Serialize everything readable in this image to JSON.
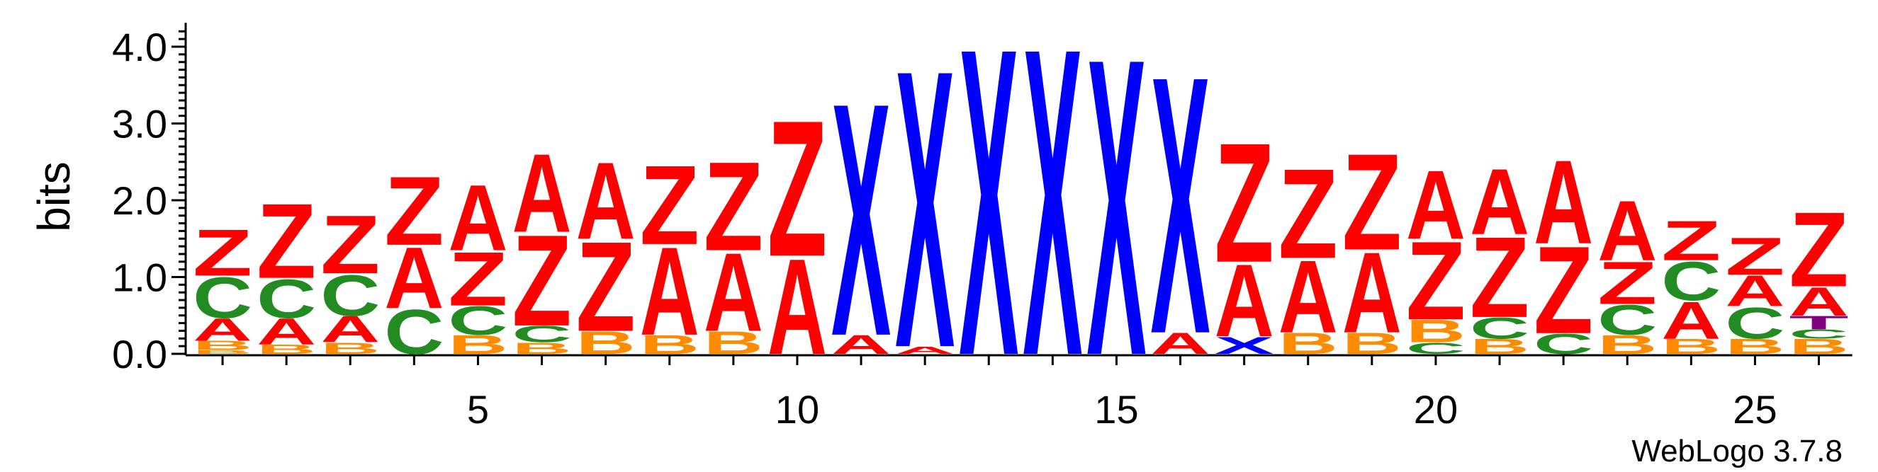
{
  "chart_data": {
    "type": "sequence-logo",
    "ylabel": "bits",
    "ylim": [
      0,
      4.2
    ],
    "y_ticks": [
      "0.0",
      "1.0",
      "2.0",
      "3.0",
      "4.0"
    ],
    "x_ticks": [
      "5",
      "10",
      "15",
      "20",
      "25"
    ],
    "credit": "WebLogo 3.7.8",
    "colors": {
      "A": "#ff0000",
      "Z": "#ff0000",
      "C": "#228b22",
      "B": "#ff8c00",
      "X": "#0000ff",
      "T": "#800080"
    },
    "positions": [
      {
        "pos": 1,
        "stack": [
          [
            "B",
            0.05
          ],
          [
            "B",
            0.12
          ],
          [
            "A",
            0.3
          ],
          [
            "C",
            0.55
          ],
          [
            "Z",
            0.62
          ]
        ]
      },
      {
        "pos": 2,
        "stack": [
          [
            "B",
            0.12
          ],
          [
            "A",
            0.35
          ],
          [
            "C",
            0.52
          ],
          [
            "Z",
            1.0
          ]
        ]
      },
      {
        "pos": 3,
        "stack": [
          [
            "B",
            0.15
          ],
          [
            "A",
            0.35
          ],
          [
            "C",
            0.55
          ],
          [
            "Z",
            0.78
          ]
        ]
      },
      {
        "pos": 4,
        "stack": [
          [
            "C",
            0.6
          ],
          [
            "A",
            0.82
          ],
          [
            "Z",
            0.92
          ]
        ]
      },
      {
        "pos": 5,
        "stack": [
          [
            "B",
            0.25
          ],
          [
            "C",
            0.38
          ],
          [
            "Z",
            0.72
          ],
          [
            "A",
            0.88
          ]
        ]
      },
      {
        "pos": 6,
        "stack": [
          [
            "B",
            0.15
          ],
          [
            "C",
            0.22
          ],
          [
            "Z",
            1.22
          ],
          [
            "A",
            1.05
          ]
        ]
      },
      {
        "pos": 7,
        "stack": [
          [
            "B",
            0.3
          ],
          [
            "Z",
            1.2
          ],
          [
            "A",
            1.03
          ]
        ]
      },
      {
        "pos": 8,
        "stack": [
          [
            "B",
            0.25
          ],
          [
            "A",
            1.18
          ],
          [
            "Z",
            1.06
          ]
        ]
      },
      {
        "pos": 9,
        "stack": [
          [
            "B",
            0.3
          ],
          [
            "A",
            1.05
          ],
          [
            "Z",
            1.19
          ]
        ]
      },
      {
        "pos": 10,
        "stack": [
          [
            "A",
            1.28
          ],
          [
            "Z",
            1.82
          ]
        ]
      },
      {
        "pos": 11,
        "stack": [
          [
            "A",
            0.25
          ],
          [
            "X",
            3.12
          ]
        ]
      },
      {
        "pos": 12,
        "stack": [
          [
            "A",
            0.1
          ],
          [
            "X",
            3.72
          ]
        ]
      },
      {
        "pos": 13,
        "stack": [
          [
            "X",
            4.12
          ]
        ]
      },
      {
        "pos": 14,
        "stack": [
          [
            "X",
            4.12
          ]
        ]
      },
      {
        "pos": 15,
        "stack": [
          [
            "X",
            3.98
          ]
        ]
      },
      {
        "pos": 16,
        "stack": [
          [
            "A",
            0.28
          ],
          [
            "X",
            3.45
          ]
        ]
      },
      {
        "pos": 17,
        "stack": [
          [
            "X",
            0.23
          ],
          [
            "A",
            0.97
          ],
          [
            "Z",
            1.6
          ]
        ]
      },
      {
        "pos": 18,
        "stack": [
          [
            "B",
            0.28
          ],
          [
            "A",
            0.97
          ],
          [
            "Z",
            1.2
          ]
        ]
      },
      {
        "pos": 19,
        "stack": [
          [
            "B",
            0.28
          ],
          [
            "A",
            1.08
          ],
          [
            "Z",
            1.29
          ]
        ]
      },
      {
        "pos": 20,
        "stack": [
          [
            "C",
            0.15
          ],
          [
            "B",
            0.3
          ],
          [
            "Z",
            1.05
          ],
          [
            "A",
            0.92
          ]
        ]
      },
      {
        "pos": 21,
        "stack": [
          [
            "B",
            0.2
          ],
          [
            "C",
            0.28
          ],
          [
            "Z",
            1.08
          ],
          [
            "A",
            0.88
          ]
        ]
      },
      {
        "pos": 22,
        "stack": [
          [
            "C",
            0.27
          ],
          [
            "Z",
            1.17
          ],
          [
            "A",
            1.12
          ]
        ]
      },
      {
        "pos": 23,
        "stack": [
          [
            "B",
            0.25
          ],
          [
            "C",
            0.4
          ],
          [
            "Z",
            0.57
          ],
          [
            "A",
            0.8
          ]
        ]
      },
      {
        "pos": 24,
        "stack": [
          [
            "B",
            0.2
          ],
          [
            "A",
            0.5
          ],
          [
            "C",
            0.52
          ],
          [
            "Z",
            0.53
          ]
        ]
      },
      {
        "pos": 25,
        "stack": [
          [
            "B",
            0.2
          ],
          [
            "C",
            0.42
          ],
          [
            "A",
            0.41
          ],
          [
            "Z",
            0.5
          ]
        ]
      },
      {
        "pos": 26,
        "stack": [
          [
            "B",
            0.2
          ],
          [
            "C",
            0.12
          ],
          [
            "T",
            0.18
          ],
          [
            "A",
            0.38
          ],
          [
            "Z",
            1.0
          ]
        ]
      }
    ]
  }
}
